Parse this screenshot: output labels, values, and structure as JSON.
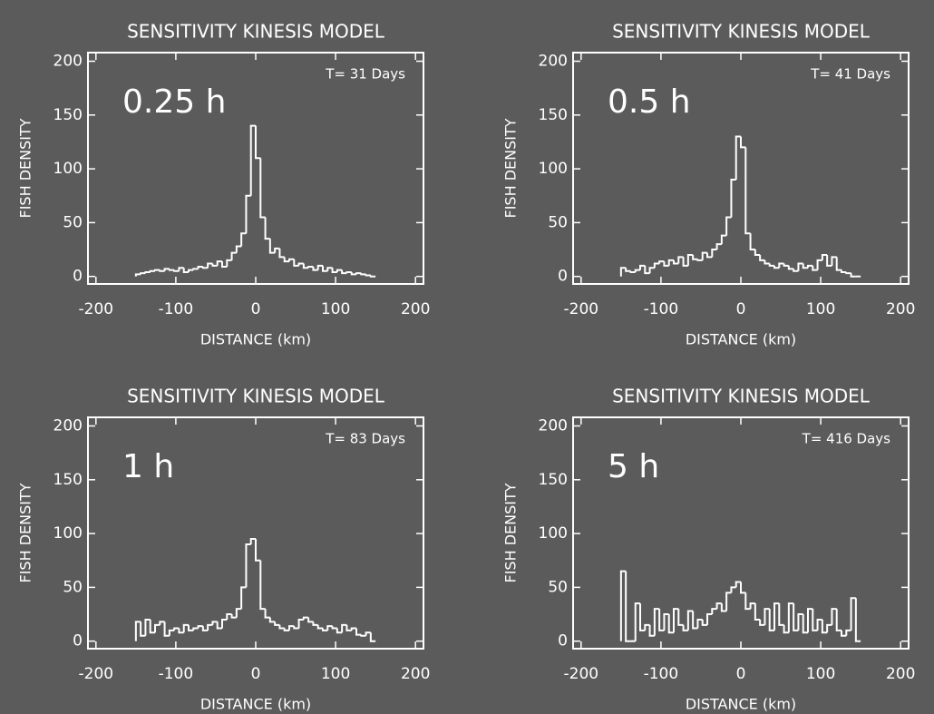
{
  "chart_data": [
    {
      "type": "histogram",
      "title": "SENSITIVITY KINESIS MODEL",
      "xlabel": "DISTANCE (km)",
      "ylabel": "FISH DENSITY",
      "label": "0.25 h",
      "annotation": "T=  31 Days",
      "color": "#ffffff",
      "bins": [
        -150,
        -144,
        -138,
        -132,
        -126,
        -120,
        -114,
        -108,
        -102,
        -96,
        -90,
        -84,
        -78,
        -72,
        -66,
        -60,
        -54,
        -48,
        -42,
        -36,
        -30,
        -24,
        -18,
        -12,
        -6,
        0,
        6,
        12,
        18,
        24,
        30,
        36,
        42,
        48,
        54,
        60,
        66,
        72,
        78,
        84,
        90,
        96,
        102,
        108,
        114,
        120,
        126,
        132,
        138,
        144,
        150
      ],
      "values": [
        2,
        3,
        4,
        5,
        6,
        5,
        7,
        6,
        5,
        8,
        4,
        6,
        7,
        9,
        8,
        12,
        10,
        14,
        9,
        15,
        22,
        28,
        40,
        75,
        140,
        110,
        55,
        35,
        22,
        26,
        18,
        14,
        16,
        10,
        12,
        8,
        9,
        6,
        10,
        5,
        8,
        4,
        6,
        3,
        4,
        2,
        3,
        2,
        1,
        0
      ],
      "xlim": [
        -210,
        210
      ],
      "ylim": [
        -7,
        208
      ],
      "xticks": [
        -200,
        -100,
        0,
        100,
        200
      ],
      "yticks": [
        0,
        50,
        100,
        150,
        200
      ]
    },
    {
      "type": "histogram",
      "title": "SENSITIVITY KINESIS MODEL",
      "xlabel": "DISTANCE (km)",
      "ylabel": "FISH DENSITY",
      "label": "0.5 h",
      "annotation": "T=  41 Days",
      "color": "#ffffff",
      "bins": [
        -150,
        -144,
        -138,
        -132,
        -126,
        -120,
        -114,
        -108,
        -102,
        -96,
        -90,
        -84,
        -78,
        -72,
        -66,
        -60,
        -54,
        -48,
        -42,
        -36,
        -30,
        -24,
        -18,
        -12,
        -6,
        0,
        6,
        12,
        18,
        24,
        30,
        36,
        42,
        48,
        54,
        60,
        66,
        72,
        78,
        84,
        90,
        96,
        102,
        108,
        114,
        120,
        126,
        132,
        138,
        144,
        150
      ],
      "values": [
        8,
        5,
        4,
        6,
        10,
        3,
        8,
        12,
        14,
        10,
        15,
        12,
        18,
        10,
        20,
        16,
        15,
        22,
        18,
        25,
        30,
        38,
        55,
        90,
        130,
        120,
        40,
        25,
        20,
        15,
        12,
        10,
        8,
        12,
        10,
        7,
        5,
        12,
        8,
        10,
        6,
        15,
        20,
        10,
        18,
        6,
        4,
        3,
        0,
        0
      ],
      "xlim": [
        -210,
        210
      ],
      "ylim": [
        -7,
        208
      ],
      "xticks": [
        -200,
        -100,
        0,
        100,
        200
      ],
      "yticks": [
        0,
        50,
        100,
        150,
        200
      ]
    },
    {
      "type": "histogram",
      "title": "SENSITIVITY KINESIS MODEL",
      "xlabel": "DISTANCE (km)",
      "ylabel": "FISH DENSITY",
      "label": "1 h",
      "annotation": "T=  83 Days",
      "color": "#ffffff",
      "bins": [
        -150,
        -144,
        -138,
        -132,
        -126,
        -120,
        -114,
        -108,
        -102,
        -96,
        -90,
        -84,
        -78,
        -72,
        -66,
        -60,
        -54,
        -48,
        -42,
        -36,
        -30,
        -24,
        -18,
        -12,
        -6,
        0,
        6,
        12,
        18,
        24,
        30,
        36,
        42,
        48,
        54,
        60,
        66,
        72,
        78,
        84,
        90,
        96,
        102,
        108,
        114,
        120,
        126,
        132,
        138,
        144,
        150
      ],
      "values": [
        18,
        5,
        20,
        8,
        15,
        18,
        5,
        10,
        12,
        8,
        15,
        10,
        12,
        14,
        10,
        15,
        18,
        12,
        20,
        25,
        22,
        30,
        50,
        90,
        95,
        75,
        30,
        22,
        18,
        15,
        12,
        10,
        14,
        12,
        20,
        22,
        18,
        15,
        12,
        10,
        14,
        12,
        8,
        15,
        10,
        12,
        6,
        5,
        8,
        0
      ],
      "xlim": [
        -210,
        210
      ],
      "ylim": [
        -7,
        208
      ],
      "xticks": [
        -200,
        -100,
        0,
        100,
        200
      ],
      "yticks": [
        0,
        50,
        100,
        150,
        200
      ]
    },
    {
      "type": "histogram",
      "title": "SENSITIVITY KINESIS MODEL",
      "xlabel": "DISTANCE (km)",
      "ylabel": "FISH DENSITY",
      "label": "5 h",
      "annotation": "T= 416 Days",
      "color": "#ffffff",
      "bins": [
        -150,
        -144,
        -138,
        -132,
        -126,
        -120,
        -114,
        -108,
        -102,
        -96,
        -90,
        -84,
        -78,
        -72,
        -66,
        -60,
        -54,
        -48,
        -42,
        -36,
        -30,
        -24,
        -18,
        -12,
        -6,
        0,
        6,
        12,
        18,
        24,
        30,
        36,
        42,
        48,
        54,
        60,
        66,
        72,
        78,
        84,
        90,
        96,
        102,
        108,
        114,
        120,
        126,
        132,
        138,
        144,
        150
      ],
      "values": [
        65,
        0,
        0,
        35,
        10,
        15,
        5,
        30,
        10,
        25,
        8,
        30,
        15,
        10,
        28,
        12,
        20,
        15,
        25,
        30,
        35,
        28,
        45,
        50,
        55,
        45,
        30,
        35,
        20,
        15,
        30,
        10,
        35,
        15,
        8,
        35,
        10,
        25,
        8,
        30,
        10,
        20,
        8,
        15,
        30,
        10,
        5,
        10,
        40,
        0
      ],
      "xlim": [
        -210,
        210
      ],
      "ylim": [
        -7,
        208
      ],
      "xticks": [
        -200,
        -100,
        0,
        100,
        200
      ],
      "yticks": [
        0,
        50,
        100,
        150,
        200
      ]
    }
  ]
}
